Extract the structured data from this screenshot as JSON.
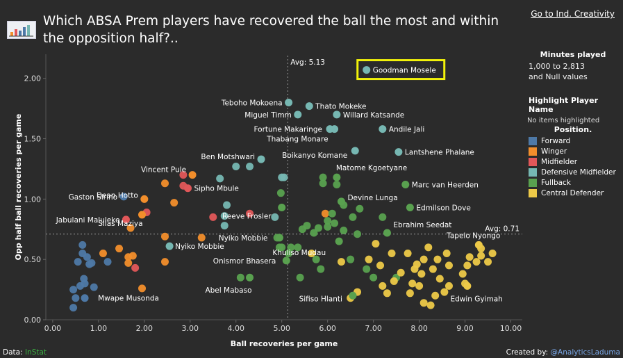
{
  "header": {
    "title": "Which ABSA Prem players have recovered the ball the most and within the opposition half?..",
    "link_label": "Go to Ind. Creativity"
  },
  "filters": {
    "minutes_title": "Minutes played",
    "minutes_range": "1,000 to 2,813",
    "minutes_null": "and Null values",
    "highlight_title": "Highlight Player Name",
    "highlight_value": "No items highlighted",
    "position_title": "Position."
  },
  "footer": {
    "data_prefix": "Data: ",
    "data_source": "InStat",
    "created_prefix": "Created by: ",
    "created_by": "@AnalyticsLaduma"
  },
  "chart_data": {
    "type": "scatter",
    "xlabel": "Ball recoveries per game",
    "ylabel": "Opp half ball recoveries per game",
    "xlim": [
      -0.15,
      10.25
    ],
    "ylim": [
      0.0,
      2.2
    ],
    "xticks": [
      "0.00",
      "1.00",
      "2.00",
      "3.00",
      "4.00",
      "5.00",
      "6.00",
      "7.00",
      "8.00",
      "9.00",
      "10.00"
    ],
    "yticks": [
      "0.00",
      "0.50",
      "1.00",
      "1.50",
      "2.00"
    ],
    "avg_x": 5.13,
    "avg_y": 0.71,
    "avg_x_label": "Avg: 5.13",
    "avg_y_label": "Avg: 0.71",
    "highlighted": "Goodman Mosele",
    "grid": false,
    "positions": [
      {
        "name": "Forward",
        "color": "#4e79a7"
      },
      {
        "name": "Winger",
        "color": "#f28e2b"
      },
      {
        "name": "Midfielder",
        "color": "#e15759"
      },
      {
        "name": "Defensive Midfielder",
        "color": "#76b7b2"
      },
      {
        "name": "Fullback",
        "color": "#59a14f"
      },
      {
        "name": "Central Defender",
        "color": "#edc948"
      }
    ],
    "labeled_points": [
      {
        "name": "Goodman Mosele",
        "x": 6.85,
        "y": 2.07,
        "pos": "Defensive Midfielder"
      },
      {
        "name": "Teboho Mokoena",
        "x": 5.15,
        "y": 1.8,
        "pos": "Defensive Midfielder"
      },
      {
        "name": "Thato Mokeke",
        "x": 5.6,
        "y": 1.77,
        "pos": "Defensive Midfielder"
      },
      {
        "name": "Miguel Timm",
        "x": 5.35,
        "y": 1.7,
        "pos": "Defensive Midfielder"
      },
      {
        "name": "Willard Katsande",
        "x": 6.2,
        "y": 1.7,
        "pos": "Defensive Midfielder"
      },
      {
        "name": "Fortune Makaringe",
        "x": 6.05,
        "y": 1.58,
        "pos": "Defensive Midfielder"
      },
      {
        "name": "Andile Jali",
        "x": 7.2,
        "y": 1.58,
        "pos": "Defensive Midfielder"
      },
      {
        "name": "Thabang Monare",
        "x": 6.15,
        "y": 1.58,
        "pos": "Defensive Midfielder"
      },
      {
        "name": "Boikanyo Komane",
        "x": 6.6,
        "y": 1.4,
        "pos": "Defensive Midfielder"
      },
      {
        "name": "Lantshene Phalane",
        "x": 7.55,
        "y": 1.39,
        "pos": "Defensive Midfielder"
      },
      {
        "name": "Ben Motshwari",
        "x": 4.55,
        "y": 1.33,
        "pos": "Defensive Midfielder"
      },
      {
        "name": "Vincent Pule",
        "x": 3.05,
        "y": 1.2,
        "pos": "Winger"
      },
      {
        "name": "Matome Kgoetyane",
        "x": 6.2,
        "y": 1.18,
        "pos": "Fullback"
      },
      {
        "name": "Sipho Mbule",
        "x": 2.95,
        "y": 1.09,
        "pos": "Midfielder"
      },
      {
        "name": "Marc van Heerden",
        "x": 7.7,
        "y": 1.12,
        "pos": "Fullback"
      },
      {
        "name": "Gaston Sirino",
        "x": 1.55,
        "y": 1.02,
        "pos": "Forward"
      },
      {
        "name": "Dean Hotto",
        "x": 2.0,
        "y": 1.0,
        "pos": "Winger"
      },
      {
        "name": "Devine Lunga",
        "x": 6.3,
        "y": 0.98,
        "pos": "Fullback"
      },
      {
        "name": "Reeve Frosler",
        "x": 5.0,
        "y": 0.93,
        "pos": "Fullback"
      },
      {
        "name": "Edmilson Dove",
        "x": 7.8,
        "y": 0.93,
        "pos": "Fullback"
      },
      {
        "name": "Jabulani Maluleke",
        "x": 1.6,
        "y": 0.83,
        "pos": "Midfielder"
      },
      {
        "name": "Silas Maziya",
        "x": 1.95,
        "y": 0.87,
        "pos": "Winger"
      },
      {
        "name": "Ebrahim Seedat",
        "x": 7.3,
        "y": 0.72,
        "pos": "Fullback"
      },
      {
        "name": "Tapelo Nyongo",
        "x": 9.3,
        "y": 0.62,
        "pos": "Central Defender"
      },
      {
        "name": "Nyiko Mobbie",
        "x": 4.95,
        "y": 0.68,
        "pos": "Fullback"
      },
      {
        "name": "Khuliso Mudau",
        "x": 6.25,
        "y": 0.65,
        "pos": "Fullback"
      },
      {
        "name": "Nyiko Mobbie",
        "x": 2.55,
        "y": 0.61,
        "pos": "Defensive Midfielder"
      },
      {
        "name": "Onismor Bhasera",
        "x": 5.1,
        "y": 0.49,
        "pos": "Fullback"
      },
      {
        "name": "Abel Mabaso",
        "x": 4.3,
        "y": 0.35,
        "pos": "Fullback"
      },
      {
        "name": "Sifiso Hlanti",
        "x": 6.55,
        "y": 0.2,
        "pos": "Fullback"
      },
      {
        "name": "Mwape Musonda",
        "x": 0.7,
        "y": 0.18,
        "pos": "Forward"
      },
      {
        "name": "Edwin Gyimah",
        "x": 9.05,
        "y": 0.28,
        "pos": "Central Defender"
      }
    ],
    "other_points": [
      {
        "x": 0.45,
        "y": 0.25,
        "pos": "Forward"
      },
      {
        "x": 0.5,
        "y": 0.18,
        "pos": "Forward"
      },
      {
        "x": 0.45,
        "y": 0.1,
        "pos": "Forward"
      },
      {
        "x": 0.6,
        "y": 0.28,
        "pos": "Forward"
      },
      {
        "x": 0.7,
        "y": 0.3,
        "pos": "Forward"
      },
      {
        "x": 0.55,
        "y": 0.48,
        "pos": "Forward"
      },
      {
        "x": 0.65,
        "y": 0.55,
        "pos": "Forward"
      },
      {
        "x": 0.75,
        "y": 0.52,
        "pos": "Forward"
      },
      {
        "x": 0.8,
        "y": 0.46,
        "pos": "Forward"
      },
      {
        "x": 0.85,
        "y": 0.47,
        "pos": "Forward"
      },
      {
        "x": 0.65,
        "y": 0.62,
        "pos": "Forward"
      },
      {
        "x": 0.9,
        "y": 0.27,
        "pos": "Forward"
      },
      {
        "x": 1.2,
        "y": 0.48,
        "pos": "Forward"
      },
      {
        "x": 0.68,
        "y": 0.34,
        "pos": "Forward"
      },
      {
        "x": 1.1,
        "y": 0.55,
        "pos": "Winger"
      },
      {
        "x": 1.45,
        "y": 0.59,
        "pos": "Winger"
      },
      {
        "x": 1.65,
        "y": 0.52,
        "pos": "Winger"
      },
      {
        "x": 1.65,
        "y": 0.47,
        "pos": "Winger"
      },
      {
        "x": 1.95,
        "y": 0.26,
        "pos": "Winger"
      },
      {
        "x": 2.45,
        "y": 0.48,
        "pos": "Winger"
      },
      {
        "x": 2.45,
        "y": 0.69,
        "pos": "Winger"
      },
      {
        "x": 2.45,
        "y": 1.13,
        "pos": "Winger"
      },
      {
        "x": 2.65,
        "y": 0.97,
        "pos": "Winger"
      },
      {
        "x": 3.25,
        "y": 0.68,
        "pos": "Winger"
      },
      {
        "x": 5.95,
        "y": 0.88,
        "pos": "Winger"
      },
      {
        "x": 1.7,
        "y": 0.76,
        "pos": "Winger"
      },
      {
        "x": 1.75,
        "y": 0.53,
        "pos": "Winger"
      },
      {
        "x": 1.8,
        "y": 0.43,
        "pos": "Midfielder"
      },
      {
        "x": 2.05,
        "y": 0.89,
        "pos": "Midfielder"
      },
      {
        "x": 2.85,
        "y": 1.2,
        "pos": "Midfielder"
      },
      {
        "x": 2.85,
        "y": 1.11,
        "pos": "Midfielder"
      },
      {
        "x": 3.5,
        "y": 0.85,
        "pos": "Midfielder"
      },
      {
        "x": 4.3,
        "y": 0.88,
        "pos": "Midfielder"
      },
      {
        "x": 3.65,
        "y": 1.17,
        "pos": "Defensive Midfielder"
      },
      {
        "x": 3.8,
        "y": 0.95,
        "pos": "Defensive Midfielder"
      },
      {
        "x": 3.75,
        "y": 0.86,
        "pos": "Defensive Midfielder"
      },
      {
        "x": 3.75,
        "y": 0.78,
        "pos": "Defensive Midfielder"
      },
      {
        "x": 4.0,
        "y": 1.27,
        "pos": "Defensive Midfielder"
      },
      {
        "x": 4.3,
        "y": 1.27,
        "pos": "Defensive Midfielder"
      },
      {
        "x": 4.85,
        "y": 0.85,
        "pos": "Defensive Midfielder"
      },
      {
        "x": 5.0,
        "y": 1.18,
        "pos": "Defensive Midfielder"
      },
      {
        "x": 5.05,
        "y": 1.18,
        "pos": "Defensive Midfielder"
      },
      {
        "x": 5.0,
        "y": 0.6,
        "pos": "Fullback"
      },
      {
        "x": 5.2,
        "y": 0.6,
        "pos": "Fullback"
      },
      {
        "x": 5.35,
        "y": 0.6,
        "pos": "Fullback"
      },
      {
        "x": 5.4,
        "y": 0.35,
        "pos": "Fullback"
      },
      {
        "x": 5.45,
        "y": 0.75,
        "pos": "Fullback"
      },
      {
        "x": 5.55,
        "y": 0.78,
        "pos": "Fullback"
      },
      {
        "x": 5.7,
        "y": 0.72,
        "pos": "Fullback"
      },
      {
        "x": 5.8,
        "y": 0.76,
        "pos": "Fullback"
      },
      {
        "x": 5.75,
        "y": 0.5,
        "pos": "Fullback"
      },
      {
        "x": 5.85,
        "y": 0.42,
        "pos": "Fullback"
      },
      {
        "x": 5.9,
        "y": 1.13,
        "pos": "Fullback"
      },
      {
        "x": 6.0,
        "y": 0.82,
        "pos": "Fullback"
      },
      {
        "x": 6.0,
        "y": 0.77,
        "pos": "Fullback"
      },
      {
        "x": 6.1,
        "y": 0.88,
        "pos": "Fullback"
      },
      {
        "x": 6.15,
        "y": 0.8,
        "pos": "Fullback"
      },
      {
        "x": 6.2,
        "y": 1.12,
        "pos": "Fullback"
      },
      {
        "x": 6.35,
        "y": 0.74,
        "pos": "Fullback"
      },
      {
        "x": 6.55,
        "y": 0.85,
        "pos": "Fullback"
      },
      {
        "x": 6.65,
        "y": 0.71,
        "pos": "Fullback"
      },
      {
        "x": 6.7,
        "y": 0.92,
        "pos": "Fullback"
      },
      {
        "x": 6.35,
        "y": 0.95,
        "pos": "Fullback"
      },
      {
        "x": 6.5,
        "y": 0.5,
        "pos": "Fullback"
      },
      {
        "x": 7.0,
        "y": 0.35,
        "pos": "Fullback"
      },
      {
        "x": 7.2,
        "y": 0.85,
        "pos": "Fullback"
      },
      {
        "x": 7.5,
        "y": 0.35,
        "pos": "Fullback"
      },
      {
        "x": 6.85,
        "y": 0.42,
        "pos": "Fullback"
      },
      {
        "x": 4.1,
        "y": 0.35,
        "pos": "Fullback"
      },
      {
        "x": 5.15,
        "y": 0.55,
        "pos": "Fullback"
      },
      {
        "x": 4.95,
        "y": 0.6,
        "pos": "Fullback"
      },
      {
        "x": 4.98,
        "y": 1.05,
        "pos": "Fullback"
      },
      {
        "x": 5.9,
        "y": 1.18,
        "pos": "Fullback"
      },
      {
        "x": 4.9,
        "y": 0.68,
        "pos": "Fullback"
      },
      {
        "x": 5.65,
        "y": 0.55,
        "pos": "Central Defender"
      },
      {
        "x": 6.3,
        "y": 0.48,
        "pos": "Central Defender"
      },
      {
        "x": 6.5,
        "y": 0.18,
        "pos": "Central Defender"
      },
      {
        "x": 6.65,
        "y": 0.23,
        "pos": "Central Defender"
      },
      {
        "x": 6.9,
        "y": 0.5,
        "pos": "Central Defender"
      },
      {
        "x": 7.05,
        "y": 0.63,
        "pos": "Central Defender"
      },
      {
        "x": 7.15,
        "y": 0.45,
        "pos": "Central Defender"
      },
      {
        "x": 7.2,
        "y": 0.28,
        "pos": "Central Defender"
      },
      {
        "x": 7.3,
        "y": 0.22,
        "pos": "Central Defender"
      },
      {
        "x": 7.4,
        "y": 0.55,
        "pos": "Central Defender"
      },
      {
        "x": 7.45,
        "y": 0.32,
        "pos": "Central Defender"
      },
      {
        "x": 7.6,
        "y": 0.39,
        "pos": "Central Defender"
      },
      {
        "x": 7.75,
        "y": 0.55,
        "pos": "Central Defender"
      },
      {
        "x": 7.8,
        "y": 0.22,
        "pos": "Central Defender"
      },
      {
        "x": 7.85,
        "y": 0.3,
        "pos": "Central Defender"
      },
      {
        "x": 7.9,
        "y": 0.42,
        "pos": "Central Defender"
      },
      {
        "x": 7.95,
        "y": 0.46,
        "pos": "Central Defender"
      },
      {
        "x": 8.0,
        "y": 0.28,
        "pos": "Central Defender"
      },
      {
        "x": 8.05,
        "y": 0.38,
        "pos": "Central Defender"
      },
      {
        "x": 8.1,
        "y": 0.5,
        "pos": "Central Defender"
      },
      {
        "x": 8.1,
        "y": 0.14,
        "pos": "Central Defender"
      },
      {
        "x": 8.2,
        "y": 0.6,
        "pos": "Central Defender"
      },
      {
        "x": 8.25,
        "y": 0.12,
        "pos": "Central Defender"
      },
      {
        "x": 8.3,
        "y": 0.42,
        "pos": "Central Defender"
      },
      {
        "x": 8.35,
        "y": 0.2,
        "pos": "Central Defender"
      },
      {
        "x": 8.4,
        "y": 0.5,
        "pos": "Central Defender"
      },
      {
        "x": 8.45,
        "y": 0.34,
        "pos": "Central Defender"
      },
      {
        "x": 8.55,
        "y": 0.23,
        "pos": "Central Defender"
      },
      {
        "x": 8.6,
        "y": 0.55,
        "pos": "Central Defender"
      },
      {
        "x": 8.65,
        "y": 0.45,
        "pos": "Central Defender"
      },
      {
        "x": 8.95,
        "y": 0.38,
        "pos": "Central Defender"
      },
      {
        "x": 9.0,
        "y": 0.3,
        "pos": "Central Defender"
      },
      {
        "x": 9.05,
        "y": 0.45,
        "pos": "Central Defender"
      },
      {
        "x": 9.1,
        "y": 0.52,
        "pos": "Central Defender"
      },
      {
        "x": 9.25,
        "y": 0.48,
        "pos": "Central Defender"
      },
      {
        "x": 9.35,
        "y": 0.53,
        "pos": "Central Defender"
      },
      {
        "x": 9.35,
        "y": 0.59,
        "pos": "Central Defender"
      },
      {
        "x": 9.5,
        "y": 0.48,
        "pos": "Central Defender"
      },
      {
        "x": 9.6,
        "y": 0.55,
        "pos": "Central Defender"
      },
      {
        "x": 8.65,
        "y": 0.28,
        "pos": "Central Defender"
      }
    ]
  }
}
